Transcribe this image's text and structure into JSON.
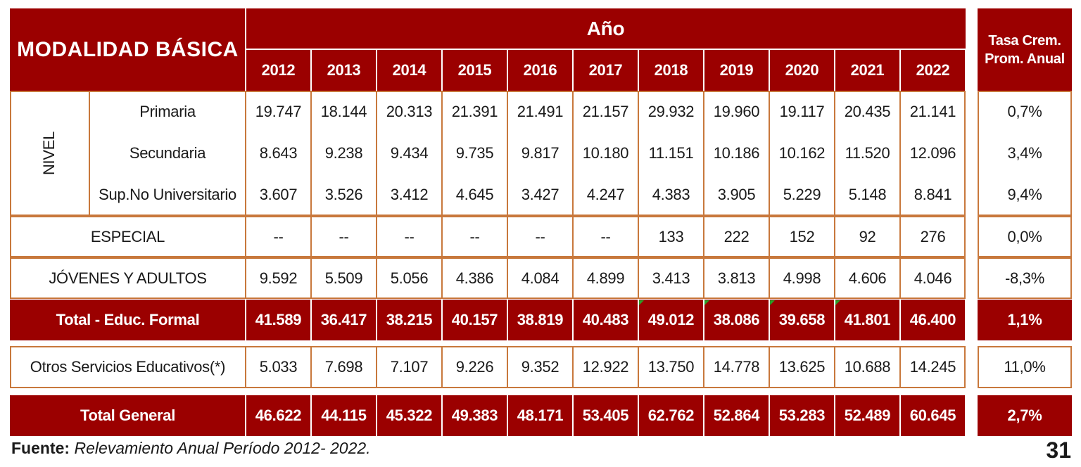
{
  "header": {
    "title": "MODALIDAD BÁSICA",
    "ano_label": "Año",
    "tasa_label_line1": "Tasa Crem.",
    "tasa_label_line2": "Prom. Anual",
    "years": [
      "2012",
      "2013",
      "2014",
      "2015",
      "2016",
      "2017",
      "2018",
      "2019",
      "2020",
      "2021",
      "2022"
    ]
  },
  "nivel_label": "NIVEL",
  "rows": {
    "primaria": {
      "label": "Primaria",
      "values": [
        "19.747",
        "18.144",
        "20.313",
        "21.391",
        "21.491",
        "21.157",
        "29.932",
        "19.960",
        "19.117",
        "20.435",
        "21.141"
      ],
      "tasa": "0,7%"
    },
    "secundaria": {
      "label": "Secundaria",
      "values": [
        "8.643",
        "9.238",
        "9.434",
        "9.735",
        "9.817",
        "10.180",
        "11.151",
        "10.186",
        "10.162",
        "11.520",
        "12.096"
      ],
      "tasa": "3,4%"
    },
    "sup": {
      "label": "Sup.No Universitario",
      "values": [
        "3.607",
        "3.526",
        "3.412",
        "4.645",
        "3.427",
        "4.247",
        "4.383",
        "3.905",
        "5.229",
        "5.148",
        "8.841"
      ],
      "tasa": "9,4%"
    },
    "especial": {
      "label": "ESPECIAL",
      "values": [
        "--",
        "--",
        "--",
        "--",
        "--",
        "--",
        "133",
        "222",
        "152",
        "92",
        "276"
      ],
      "tasa": "0,0%"
    },
    "jovenes": {
      "label": "JÓVENES Y ADULTOS",
      "values": [
        "9.592",
        "5.509",
        "5.056",
        "4.386",
        "4.084",
        "4.899",
        "3.413",
        "3.813",
        "4.998",
        "4.606",
        "4.046"
      ],
      "tasa": "-8,3%"
    },
    "total_formal": {
      "label": "Total - Educ. Formal",
      "values": [
        "41.589",
        "36.417",
        "38.215",
        "40.157",
        "38.819",
        "40.483",
        "49.012",
        "38.086",
        "39.658",
        "41.801",
        "46.400"
      ],
      "tasa": "1,1%"
    },
    "otros": {
      "label": "Otros Servicios Educativos(*)",
      "values": [
        "5.033",
        "7.698",
        "7.107",
        "9.226",
        "9.352",
        "12.922",
        "13.750",
        "14.778",
        "13.625",
        "10.688",
        "14.245"
      ],
      "tasa": "11,0%"
    },
    "total_general": {
      "label": "Total General",
      "values": [
        "46.622",
        "44.115",
        "45.322",
        "49.383",
        "48.171",
        "53.405",
        "62.762",
        "52.864",
        "53.283",
        "52.489",
        "60.645"
      ],
      "tasa": "2,7%"
    }
  },
  "footer": {
    "source_label": "Fuente:",
    "source_text": "Relevamiento Anual Período 2012- 2022.",
    "page_number": "31"
  },
  "colors": {
    "header_red": "#9b0000",
    "border_orange": "#c8783c",
    "marker_green": "#2aa02a"
  }
}
